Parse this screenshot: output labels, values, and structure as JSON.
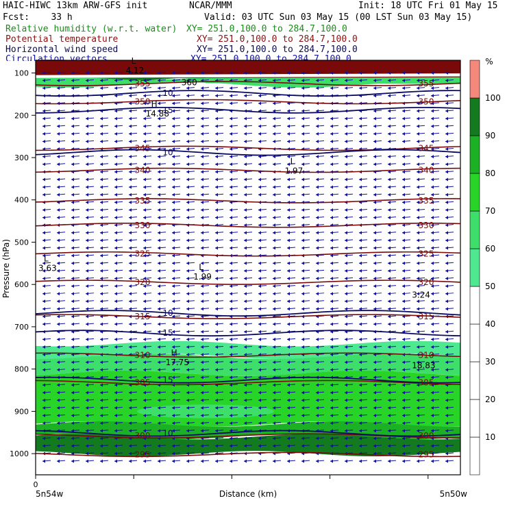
{
  "header": {
    "line1_left": "HAIC-HIWC 13km ARW-GFS init",
    "line1_mid": "NCAR/MMM",
    "line1_right": "Init: 18 UTC Fri 01 May 15",
    "line2_left": "Fcst:    33 h",
    "line2_right": "Valid: 03 UTC Sun 03 May 15 (00 LST Sun 03 May 15)",
    "fields": [
      {
        "name": "Relative humidity (w.r.t. water)",
        "xy": "XY= 251.0,100.0 to 284.7,100.0",
        "color": "#1a8a1a"
      },
      {
        "name": "Potential temperature",
        "xy": "XY= 251.0,100.0 to 284.7,100.0",
        "color": "#8b1010"
      },
      {
        "name": "Horizontal wind speed",
        "xy": "XY= 251.0,100.0 to 284.7,100.0",
        "color": "#0a0a50"
      },
      {
        "name": "Circulation vectors",
        "xy": "XY= 251.0,100.0 to 284.7,100.0",
        "color": "#1010a0"
      }
    ]
  },
  "chart_data": {
    "type": "heatmap",
    "xlabel": "Distance (km)",
    "ylabel": "Pressure (hPa)",
    "x_tick_zero": "0",
    "x_left_label": "5n54w",
    "x_right_label": "5n50w",
    "y_ticks": [
      100,
      200,
      300,
      400,
      500,
      600,
      700,
      800,
      900,
      1000
    ],
    "ylim": [
      1050,
      70
    ],
    "colorbar": {
      "unit": "%",
      "levels": [
        10,
        20,
        30,
        40,
        50,
        60,
        70,
        80,
        90,
        100
      ],
      "colors": {
        "50-60": "#4ee890",
        "60-70": "#3ede6a",
        "70-80": "#28d428",
        "80-90": "#1cb024",
        "90-100": "#147a20",
        "100+": "#f4887a"
      }
    },
    "humidity_regions": [
      {
        "band": "50-60",
        "p_top": 740,
        "p_bottom": 770
      },
      {
        "band": "60-70",
        "p_top": 770,
        "p_bottom": 810
      },
      {
        "band": "70-80",
        "p_top": 810,
        "p_bottom": 930
      },
      {
        "band": "80-90",
        "p_top": 930,
        "p_bottom": 960
      },
      {
        "band": "90-100",
        "p_top": 960,
        "p_bottom": 1000
      },
      {
        "band": "90-100",
        "p_top": 75,
        "p_bottom": 115
      },
      {
        "band": "60-70",
        "p_top": 110,
        "p_bottom": 128
      }
    ],
    "theta_contours": [
      {
        "value": 355,
        "p": 125
      },
      {
        "value": 350,
        "p": 168
      },
      {
        "value": 345,
        "p": 278
      },
      {
        "value": 340,
        "p": 330
      },
      {
        "value": 335,
        "p": 402
      },
      {
        "value": 330,
        "p": 460
      },
      {
        "value": 325,
        "p": 528
      },
      {
        "value": 320,
        "p": 595
      },
      {
        "value": 315,
        "p": 676
      },
      {
        "value": 310,
        "p": 767
      },
      {
        "value": 305,
        "p": 832
      },
      {
        "value": 300,
        "p": 958
      },
      {
        "value": 295,
        "p": 1002
      }
    ],
    "wind_contours": [
      {
        "value": 10,
        "p": 148
      },
      {
        "value": 15,
        "p": 188
      },
      {
        "value": 10,
        "p": 288
      },
      {
        "value": 10,
        "p": 668
      },
      {
        "value": 15,
        "p": 715
      },
      {
        "value": 15,
        "p": 826
      },
      {
        "value": 10,
        "p": 952
      }
    ],
    "extrema_labels": [
      {
        "mark": "L",
        "value": "4.12",
        "x_frac": 0.22,
        "p": 88
      },
      {
        "mark": "H",
        "value": "14.88",
        "x_frac": 0.27,
        "p": 190
      },
      {
        "mark": "L",
        "value": "1.97",
        "x_frac": 0.62,
        "p": 325
      },
      {
        "mark": "L",
        "value": "3.63",
        "x_frac": 0.0,
        "p": 555
      },
      {
        "mark": "L",
        "value": "1.99",
        "x_frac": 0.39,
        "p": 575
      },
      {
        "mark": "",
        "value": "3.24",
        "x_frac": 0.94,
        "p": 618
      },
      {
        "mark": "H",
        "value": "17.75",
        "x_frac": 0.32,
        "p": 778
      },
      {
        "mark": "",
        "value": "18.83",
        "x_frac": 0.94,
        "p": 785
      },
      {
        "mark": "",
        "value": "360",
        "x_frac": 0.36,
        "p": 116
      }
    ]
  }
}
